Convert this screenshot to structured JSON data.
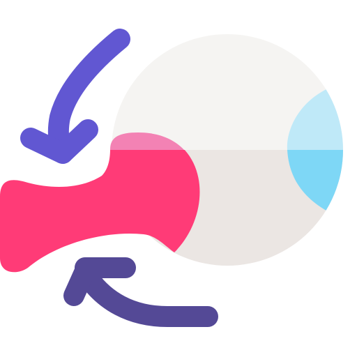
{
  "icon": {
    "name": "eye-optic-nerve-flow",
    "colors": {
      "background": "#ffffff",
      "eyeball_top": "#f5f4f2",
      "eyeball_bottom": "#ebe6e3",
      "iris_top": "#bfe9f8",
      "iris_bottom": "#7ed7f6",
      "nerve_top": "#f382b4",
      "nerve_main": "#ff3b77",
      "arrow_top": "#6157d2",
      "arrow_bottom": "#544996"
    },
    "parts": [
      "eyeball-icon",
      "iris-icon",
      "optic-nerve-icon",
      "curved-arrow-top-icon",
      "curved-arrow-bottom-icon"
    ]
  }
}
